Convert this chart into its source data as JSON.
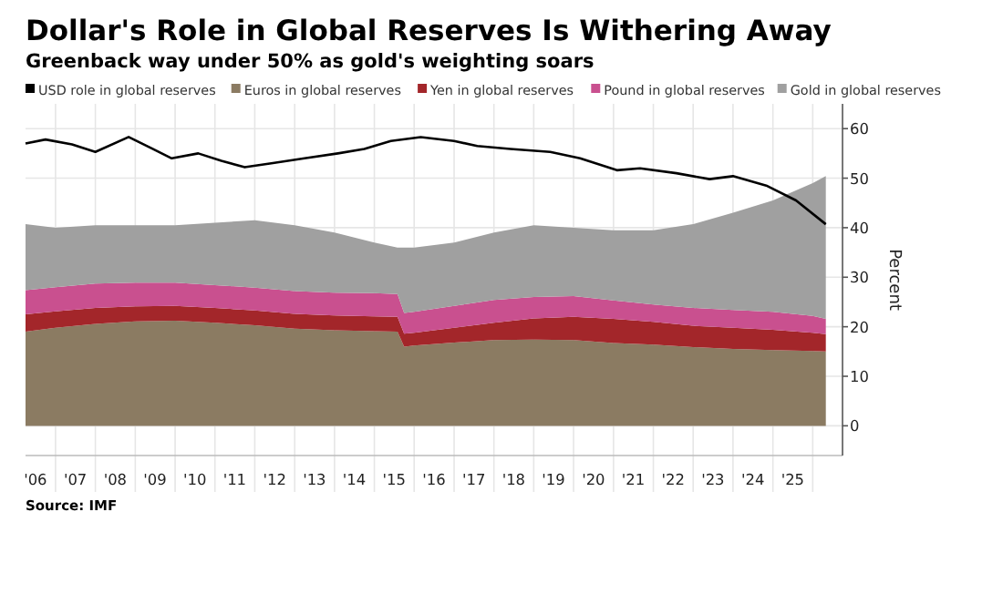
{
  "chart_data": {
    "type": "area",
    "title": "Dollar's Role in Global Reserves Is Withering Away",
    "subtitle": "Greenback way under 50% as gold's weighting soars",
    "ylabel": "Percent",
    "x": [
      "2006-04",
      "2007-01",
      "2008-01",
      "2009-01",
      "2010-01",
      "2011-01",
      "2012-01",
      "2013-01",
      "2014-01",
      "2015-01",
      "2015-08",
      "2015-10",
      "2016-01",
      "2017-01",
      "2018-01",
      "2019-01",
      "2020-01",
      "2021-01",
      "2022-01",
      "2023-01",
      "2024-01",
      "2025-01",
      "2026-01",
      "2026-05"
    ],
    "stacked": true,
    "series": [
      {
        "name": "USD role in global reserves",
        "type": "line",
        "color": "#000000",
        "x": [
          "2006-04",
          "2006-10",
          "2007-06",
          "2008-01",
          "2008-11",
          "2009-06",
          "2009-12",
          "2010-08",
          "2011-03",
          "2011-10",
          "2012-06",
          "2013-04",
          "2014-02",
          "2014-10",
          "2015-06",
          "2016-03",
          "2017-01",
          "2017-08",
          "2018-06",
          "2019-06",
          "2020-03",
          "2021-02",
          "2021-09",
          "2022-08",
          "2023-06",
          "2024-01",
          "2024-11",
          "2025-08",
          "2026-05"
        ],
        "values": [
          57,
          57.8,
          56.8,
          55.3,
          58.3,
          56,
          54,
          55,
          53.5,
          52.2,
          53,
          54,
          55,
          55.9,
          57.5,
          58.3,
          57.5,
          56.5,
          55.9,
          55.3,
          54,
          51.6,
          52,
          51,
          49.8,
          50.4,
          48.5,
          45.5,
          40.7
        ]
      },
      {
        "name": "Euros in global reserves",
        "color": "#8b7b62",
        "values": [
          19,
          19.8,
          20.6,
          21.1,
          21.2,
          20.8,
          20.3,
          19.6,
          19.3,
          19.1,
          19,
          16,
          16.2,
          16.8,
          17.3,
          17.4,
          17.3,
          16.7,
          16.4,
          15.9,
          15.5,
          15.3,
          15.1,
          15
        ]
      },
      {
        "name": "Yen in global reserves",
        "color": "#a3262a",
        "values": [
          3.5,
          3.3,
          3.2,
          3,
          3,
          3,
          3,
          3,
          3,
          3,
          3,
          2.6,
          2.6,
          3,
          3.5,
          4.3,
          4.7,
          4.9,
          4.6,
          4.3,
          4.3,
          4.1,
          3.7,
          3.5
        ]
      },
      {
        "name": "Pound in global reserves",
        "color": "#c9508f",
        "values": [
          4.9,
          4.9,
          4.9,
          4.8,
          4.7,
          4.6,
          4.6,
          4.6,
          4.6,
          4.7,
          4.6,
          4.2,
          4.2,
          4.4,
          4.6,
          4.3,
          4.2,
          3.7,
          3.5,
          3.6,
          3.6,
          3.6,
          3.4,
          3.1
        ]
      },
      {
        "name": "Gold in global reserves",
        "color": "#a0a0a0",
        "values": [
          13.3,
          12,
          11.8,
          11.6,
          11.6,
          12.6,
          13.6,
          13.3,
          12.1,
          10.2,
          9.4,
          13.2,
          13,
          12.8,
          13.6,
          14.5,
          13.8,
          14.2,
          15,
          16.9,
          19.6,
          22.5,
          26.8,
          28.8
        ]
      }
    ],
    "xlim": [
      "2006-04",
      "2026-10"
    ],
    "xticks": [
      {
        "value": "2006-07",
        "label": "'06"
      },
      {
        "value": "2007-07",
        "label": "'07"
      },
      {
        "value": "2008-07",
        "label": "'08"
      },
      {
        "value": "2009-07",
        "label": "'09"
      },
      {
        "value": "2010-07",
        "label": "'10"
      },
      {
        "value": "2011-07",
        "label": "'11"
      },
      {
        "value": "2012-07",
        "label": "'12"
      },
      {
        "value": "2013-07",
        "label": "'13"
      },
      {
        "value": "2014-07",
        "label": "'14"
      },
      {
        "value": "2015-07",
        "label": "'15"
      },
      {
        "value": "2016-07",
        "label": "'16"
      },
      {
        "value": "2017-07",
        "label": "'17"
      },
      {
        "value": "2018-07",
        "label": "'18"
      },
      {
        "value": "2019-07",
        "label": "'19"
      },
      {
        "value": "2020-07",
        "label": "'20"
      },
      {
        "value": "2021-07",
        "label": "'21"
      },
      {
        "value": "2022-07",
        "label": "'22"
      },
      {
        "value": "2023-07",
        "label": "'23"
      },
      {
        "value": "2024-07",
        "label": "'24"
      },
      {
        "value": "2025-07",
        "label": "'25"
      },
      {
        "value": "2007-01",
        "label": null
      },
      {
        "value": "2008-01",
        "label": null
      },
      {
        "value": "2009-01",
        "label": null
      },
      {
        "value": "2010-01",
        "label": null
      },
      {
        "value": "2011-01",
        "label": null
      },
      {
        "value": "2012-01",
        "label": null
      },
      {
        "value": "2013-01",
        "label": null
      },
      {
        "value": "2014-01",
        "label": null
      },
      {
        "value": "2015-01",
        "label": null
      },
      {
        "value": "2016-01",
        "label": null
      },
      {
        "value": "2017-01",
        "label": null
      },
      {
        "value": "2018-01",
        "label": null
      },
      {
        "value": "2019-01",
        "label": null
      },
      {
        "value": "2020-01",
        "label": null
      },
      {
        "value": "2021-01",
        "label": null
      },
      {
        "value": "2022-01",
        "label": null
      },
      {
        "value": "2023-01",
        "label": null
      },
      {
        "value": "2024-01",
        "label": null
      },
      {
        "value": "2025-01",
        "label": null
      },
      {
        "value": "2026-01",
        "label": null
      }
    ],
    "ylim": [
      -6,
      65
    ],
    "yticks": [
      0,
      10,
      20,
      30,
      40,
      50,
      60
    ],
    "grid": true,
    "legend": "top",
    "annotations": [
      "Source: IMF"
    ]
  }
}
